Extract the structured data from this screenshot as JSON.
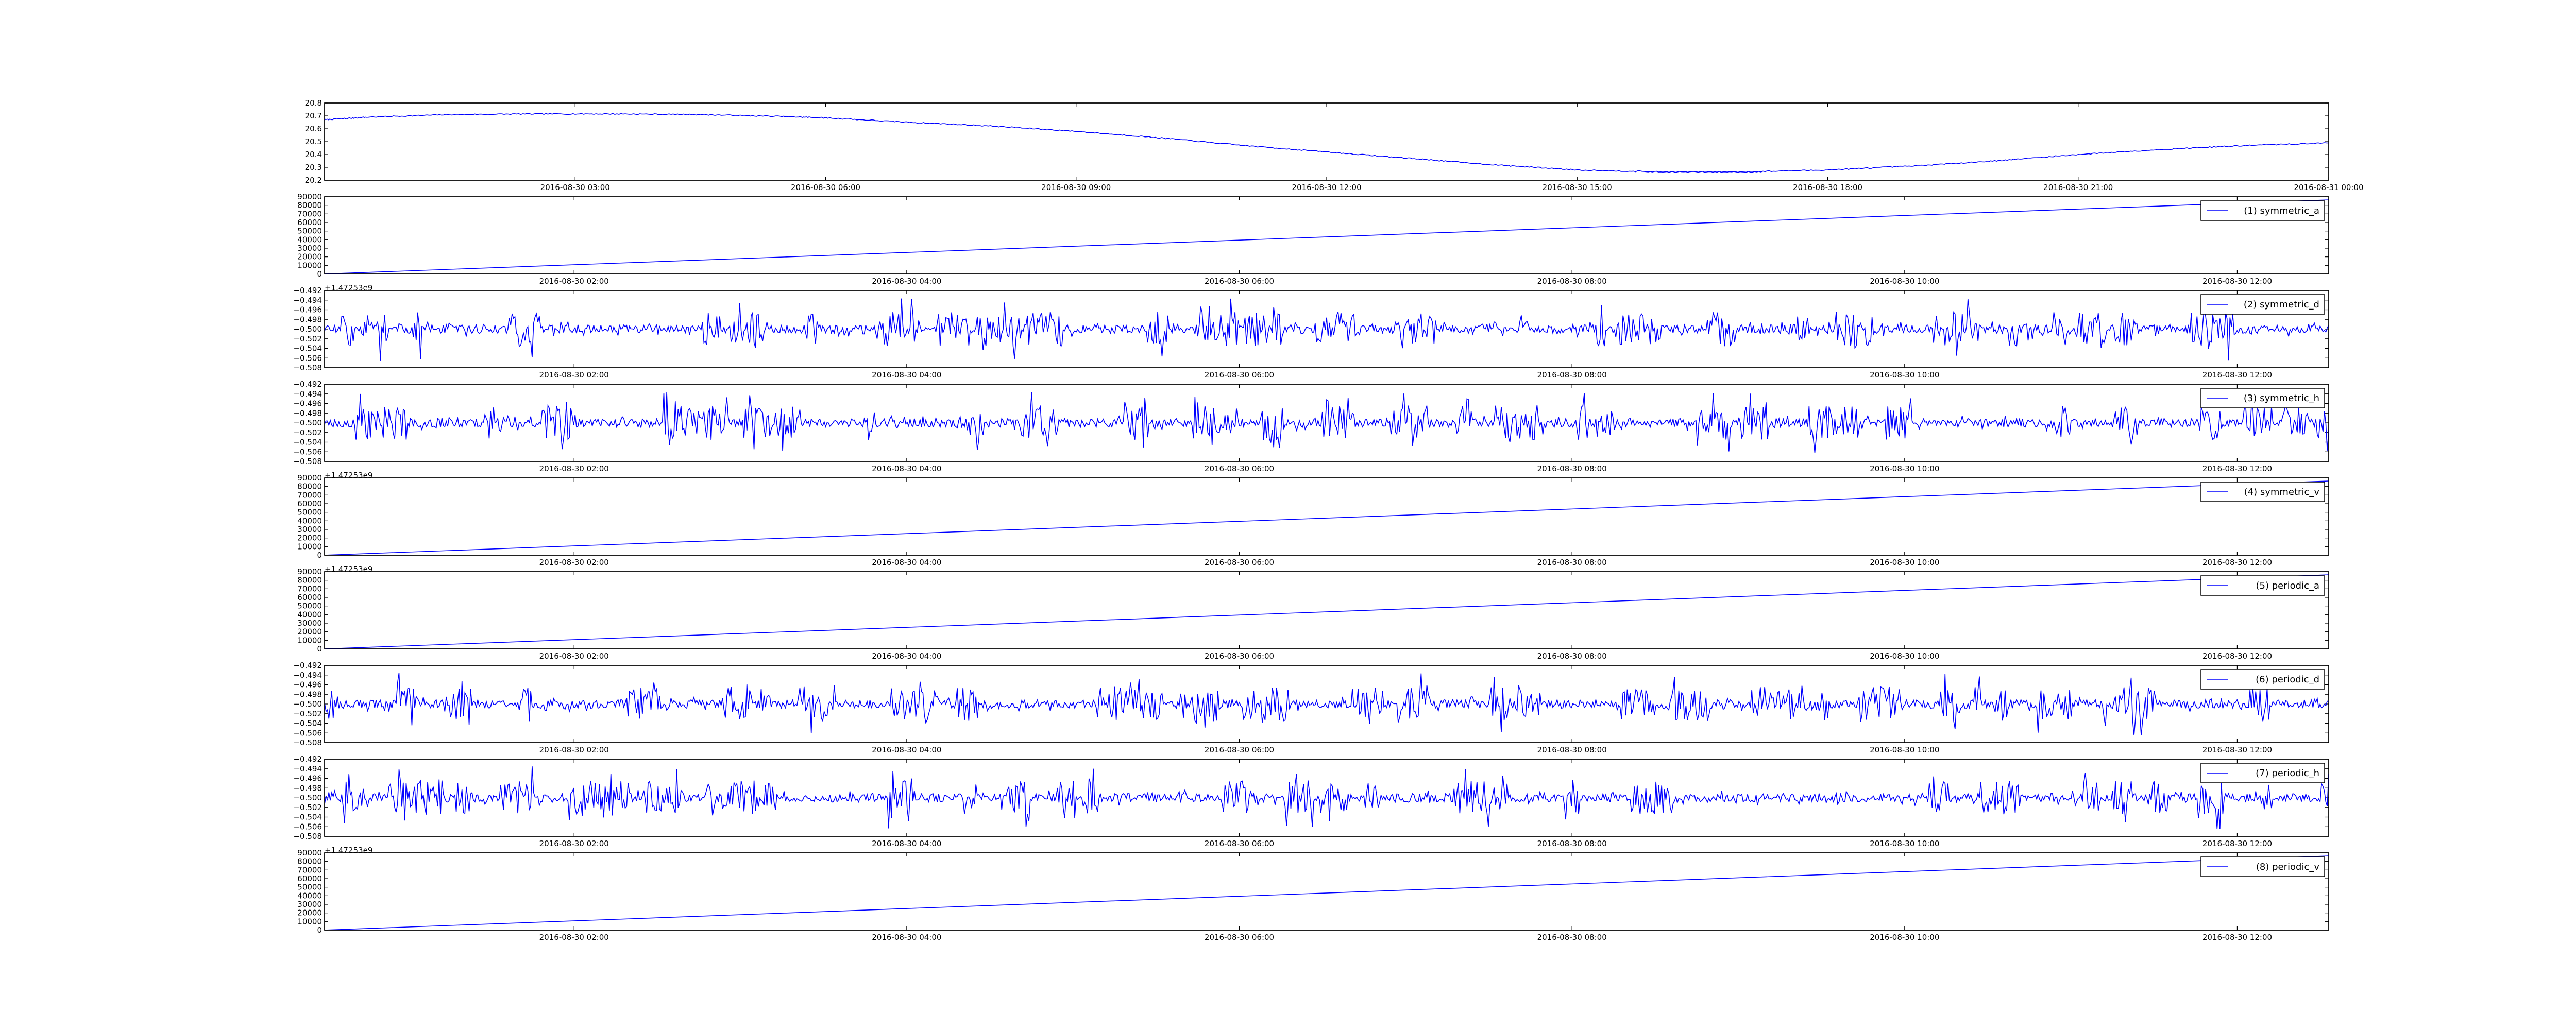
{
  "chart_data": [
    {
      "type": "line",
      "kind": "smooth",
      "offset_label": "",
      "ylim": [
        20.2,
        20.8
      ],
      "yticks": [
        20.2,
        20.3,
        20.4,
        20.5,
        20.6,
        20.7,
        20.8
      ],
      "xlim": [
        "2016-08-30 00:00",
        "2016-08-31 00:00"
      ],
      "xtick_labels": [
        "2016-08-30 03:00",
        "2016-08-30 06:00",
        "2016-08-30 09:00",
        "2016-08-30 12:00",
        "2016-08-30 15:00",
        "2016-08-30 18:00",
        "2016-08-30 21:00",
        "2016-08-31 00:00"
      ],
      "xtick_hours": [
        3,
        6,
        9,
        12,
        15,
        18,
        21,
        24
      ],
      "legend": null,
      "color": "#0000ff",
      "series": [
        {
          "x_hours": [
            0,
            0.5,
            1.5,
            2.5,
            3.5,
            4.5,
            5.5,
            6,
            7,
            8,
            9,
            10,
            11,
            12,
            13,
            14,
            15,
            16,
            17,
            18,
            19,
            20,
            21,
            22,
            23,
            24
          ],
          "values": [
            20.67,
            20.69,
            20.71,
            20.715,
            20.715,
            20.71,
            20.695,
            20.685,
            20.65,
            20.62,
            20.58,
            20.53,
            20.47,
            20.42,
            20.37,
            20.32,
            20.28,
            20.265,
            20.265,
            20.28,
            20.31,
            20.35,
            20.4,
            20.44,
            20.47,
            20.49
          ]
        }
      ]
    },
    {
      "type": "line",
      "kind": "ramp",
      "offset_label": "+1.47253e9",
      "ylim": [
        0,
        90000
      ],
      "yticks": [
        0,
        10000,
        20000,
        30000,
        40000,
        50000,
        60000,
        70000,
        80000,
        90000
      ],
      "xtick_labels": [
        "2016-08-30 02:00",
        "2016-08-30 04:00",
        "2016-08-30 06:00",
        "2016-08-30 08:00",
        "2016-08-30 10:00",
        "2016-08-30 12:00"
      ],
      "xtick_hours": [
        2,
        4,
        6,
        8,
        10,
        12
      ],
      "xlim_hours": [
        0.5,
        12.55
      ],
      "legend": "(1) symmetric_a",
      "color": "#0000ff",
      "series": [
        {
          "x_hours": [
            0.5,
            12.55
          ],
          "values": [
            0,
            86400
          ]
        }
      ]
    },
    {
      "type": "line",
      "kind": "noise",
      "seed": 11,
      "offset_label": "",
      "ylim": [
        -0.508,
        -0.492
      ],
      "yticks": [
        -0.508,
        -0.506,
        -0.504,
        -0.502,
        -0.5,
        -0.498,
        -0.496,
        -0.494,
        -0.492
      ],
      "ytick_labels": [
        "−0.508",
        "−0.506",
        "−0.504",
        "−0.502",
        "−0.500",
        "−0.498",
        "−0.496",
        "−0.494",
        "−0.492"
      ],
      "xtick_labels": [
        "2016-08-30 02:00",
        "2016-08-30 04:00",
        "2016-08-30 06:00",
        "2016-08-30 08:00",
        "2016-08-30 10:00",
        "2016-08-30 12:00"
      ],
      "xtick_hours": [
        2,
        4,
        6,
        8,
        10,
        12
      ],
      "xlim_hours": [
        0.5,
        12.55
      ],
      "legend": "(2) symmetric_d",
      "color": "#0000ff",
      "series": [
        {
          "mean": -0.5,
          "min": -0.5065,
          "max": -0.4935
        }
      ]
    },
    {
      "type": "line",
      "kind": "noise",
      "seed": 23,
      "offset_label": "+1.47253e9",
      "ylim": [
        -0.508,
        -0.492
      ],
      "yticks": [
        -0.508,
        -0.506,
        -0.504,
        -0.502,
        -0.5,
        -0.498,
        -0.496,
        -0.494,
        -0.492
      ],
      "ytick_labels": [
        "−0.508",
        "−0.506",
        "−0.504",
        "−0.502",
        "−0.500",
        "−0.498",
        "−0.496",
        "−0.494",
        "−0.492"
      ],
      "xtick_labels": [
        "2016-08-30 02:00",
        "2016-08-30 04:00",
        "2016-08-30 06:00",
        "2016-08-30 08:00",
        "2016-08-30 10:00",
        "2016-08-30 12:00"
      ],
      "xtick_hours": [
        2,
        4,
        6,
        8,
        10,
        12
      ],
      "xlim_hours": [
        0.5,
        12.55
      ],
      "legend": "(3) symmetric_h",
      "color": "#0000ff",
      "series": [
        {
          "mean": -0.5,
          "min": -0.5065,
          "max": -0.4935
        }
      ]
    },
    {
      "type": "line",
      "kind": "ramp",
      "offset_label": "+1.47253e9",
      "ylim": [
        0,
        90000
      ],
      "yticks": [
        0,
        10000,
        20000,
        30000,
        40000,
        50000,
        60000,
        70000,
        80000,
        90000
      ],
      "xtick_labels": [
        "2016-08-30 02:00",
        "2016-08-30 04:00",
        "2016-08-30 06:00",
        "2016-08-30 08:00",
        "2016-08-30 10:00",
        "2016-08-30 12:00"
      ],
      "xtick_hours": [
        2,
        4,
        6,
        8,
        10,
        12
      ],
      "xlim_hours": [
        0.5,
        12.55
      ],
      "legend": "(4) symmetric_v",
      "color": "#0000ff",
      "series": [
        {
          "x_hours": [
            0.5,
            12.55
          ],
          "values": [
            0,
            86400
          ]
        }
      ]
    },
    {
      "type": "line",
      "kind": "ramp",
      "offset_label": "",
      "ylim": [
        0,
        90000
      ],
      "yticks": [
        0,
        10000,
        20000,
        30000,
        40000,
        50000,
        60000,
        70000,
        80000,
        90000
      ],
      "xtick_labels": [
        "2016-08-30 02:00",
        "2016-08-30 04:00",
        "2016-08-30 06:00",
        "2016-08-30 08:00",
        "2016-08-30 10:00",
        "2016-08-30 12:00"
      ],
      "xtick_hours": [
        2,
        4,
        6,
        8,
        10,
        12
      ],
      "xlim_hours": [
        0.5,
        12.55
      ],
      "legend": "(5) periodic_a",
      "color": "#0000ff",
      "series": [
        {
          "x_hours": [
            0.5,
            12.55
          ],
          "values": [
            0,
            86400
          ]
        }
      ]
    },
    {
      "type": "line",
      "kind": "noise",
      "seed": 37,
      "offset_label": "",
      "ylim": [
        -0.508,
        -0.492
      ],
      "yticks": [
        -0.508,
        -0.506,
        -0.504,
        -0.502,
        -0.5,
        -0.498,
        -0.496,
        -0.494,
        -0.492
      ],
      "ytick_labels": [
        "−0.508",
        "−0.506",
        "−0.504",
        "−0.502",
        "−0.500",
        "−0.498",
        "−0.496",
        "−0.494",
        "−0.492"
      ],
      "xtick_labels": [
        "2016-08-30 02:00",
        "2016-08-30 04:00",
        "2016-08-30 06:00",
        "2016-08-30 08:00",
        "2016-08-30 10:00",
        "2016-08-30 12:00"
      ],
      "xtick_hours": [
        2,
        4,
        6,
        8,
        10,
        12
      ],
      "xlim_hours": [
        0.5,
        12.55
      ],
      "legend": "(6) periodic_d",
      "color": "#0000ff",
      "series": [
        {
          "mean": -0.5,
          "min": -0.5065,
          "max": -0.4935
        }
      ]
    },
    {
      "type": "line",
      "kind": "noise",
      "seed": 53,
      "offset_label": "+1.47253e9",
      "ylim": [
        -0.508,
        -0.492
      ],
      "yticks": [
        -0.508,
        -0.506,
        -0.504,
        -0.502,
        -0.5,
        -0.498,
        -0.496,
        -0.494,
        -0.492
      ],
      "ytick_labels": [
        "−0.508",
        "−0.506",
        "−0.504",
        "−0.502",
        "−0.500",
        "−0.498",
        "−0.496",
        "−0.494",
        "−0.492"
      ],
      "xtick_labels": [
        "2016-08-30 02:00",
        "2016-08-30 04:00",
        "2016-08-30 06:00",
        "2016-08-30 08:00",
        "2016-08-30 10:00",
        "2016-08-30 12:00"
      ],
      "xtick_hours": [
        2,
        4,
        6,
        8,
        10,
        12
      ],
      "xlim_hours": [
        0.5,
        12.55
      ],
      "legend": "(7) periodic_h",
      "color": "#0000ff",
      "series": [
        {
          "mean": -0.5,
          "min": -0.5065,
          "max": -0.4935
        }
      ]
    },
    {
      "type": "line",
      "kind": "ramp",
      "offset_label": "",
      "ylim": [
        0,
        90000
      ],
      "yticks": [
        0,
        10000,
        20000,
        30000,
        40000,
        50000,
        60000,
        70000,
        80000,
        90000
      ],
      "xtick_labels": [
        "2016-08-30 02:00",
        "2016-08-30 04:00",
        "2016-08-30 06:00",
        "2016-08-30 08:00",
        "2016-08-30 10:00",
        "2016-08-30 12:00"
      ],
      "xtick_hours": [
        2,
        4,
        6,
        8,
        10,
        12
      ],
      "xlim_hours": [
        0.5,
        12.55
      ],
      "legend": "(8) periodic_v",
      "color": "#0000ff",
      "series": [
        {
          "x_hours": [
            0.5,
            12.55
          ],
          "values": [
            0,
            86400
          ]
        }
      ]
    }
  ]
}
